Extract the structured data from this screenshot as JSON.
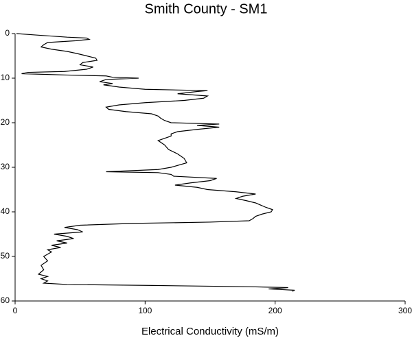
{
  "chart_data": {
    "type": "line",
    "title": "Smith County - SM1",
    "x_label": "Electrical Conductivity (mS/m)",
    "color": "#000000",
    "y_inverted": true,
    "xlim": [
      0,
      300
    ],
    "xticks": [
      0,
      100,
      200,
      300
    ],
    "ylim": [
      0,
      60
    ],
    "yticks": [
      0,
      10,
      20,
      30,
      40,
      50,
      60
    ],
    "x": [
      1,
      15,
      40,
      55,
      57,
      47,
      25,
      22,
      20,
      28,
      40,
      48,
      55,
      62,
      63,
      52,
      50,
      60,
      55,
      38,
      10,
      5,
      40,
      70,
      75,
      95,
      70,
      65,
      75,
      68,
      80,
      100,
      148,
      140,
      125,
      148,
      145,
      130,
      100,
      80,
      70,
      72,
      85,
      105,
      110,
      112,
      115,
      120,
      157,
      140,
      157,
      140,
      125,
      120,
      120,
      110,
      115,
      118,
      125,
      130,
      132,
      120,
      110,
      70,
      110,
      120,
      122,
      155,
      150,
      135,
      123,
      140,
      148,
      170,
      185,
      175,
      170,
      178,
      185,
      193,
      198,
      197,
      190,
      185,
      183,
      180,
      150,
      90,
      50,
      38,
      48,
      52,
      30,
      40,
      45,
      32,
      40,
      28,
      35,
      25,
      28,
      22,
      25,
      20,
      22,
      18,
      25,
      20,
      25,
      22,
      40,
      100,
      180,
      210,
      195,
      215,
      213
    ],
    "values": [
      0,
      0.3,
      0.8,
      1,
      1.3,
      1.6,
      2,
      2.5,
      3,
      3.5,
      4,
      4.5,
      5,
      5.5,
      6,
      6.5,
      7,
      7.5,
      8,
      8.5,
      8.7,
      9,
      9.3,
      9.5,
      9.8,
      10,
      10.3,
      10.8,
      11.2,
      11.5,
      12,
      12.5,
      12.8,
      13,
      13.5,
      14,
      14.5,
      15,
      15.5,
      16,
      16.5,
      17,
      17.5,
      18,
      18.5,
      19,
      19.5,
      20,
      20.3,
      20.6,
      21,
      21.5,
      22,
      22.5,
      23,
      24,
      25,
      26,
      27,
      28,
      29,
      30,
      30.5,
      31,
      31.2,
      31.6,
      32,
      32.5,
      33,
      33.5,
      34,
      34.5,
      35,
      35.5,
      36,
      36.5,
      37,
      37.5,
      38,
      39,
      39.5,
      40,
      40.5,
      41,
      41.5,
      42,
      42.3,
      42.6,
      43,
      43.5,
      44,
      44.5,
      45,
      45.5,
      46,
      46.5,
      47,
      47.5,
      48,
      48.5,
      49,
      50,
      51,
      52,
      53,
      54,
      54.5,
      55,
      55.5,
      56,
      56.3,
      56.5,
      56.8,
      57,
      57.3,
      57.6,
      57.8
    ]
  }
}
